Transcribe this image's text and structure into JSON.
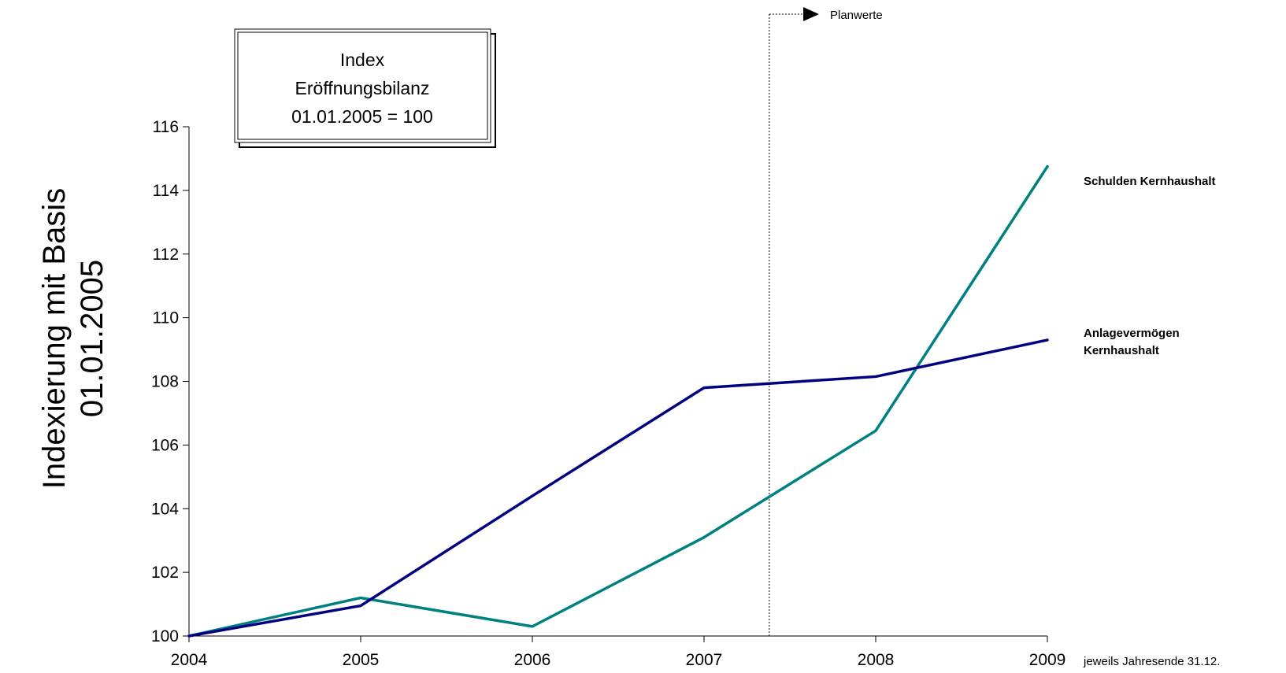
{
  "chart_data": {
    "type": "line",
    "x": [
      "2004",
      "2005",
      "2006",
      "2007",
      "2008",
      "2009"
    ],
    "series": [
      {
        "name": "Schulden Kernhaushalt",
        "color": "#008080",
        "values": [
          100,
          101.2,
          100.3,
          103.1,
          106.45,
          114.75
        ]
      },
      {
        "name": "Anlagevermögen Kernhaushalt",
        "color": "#000080",
        "values": [
          100,
          100.95,
          104.4,
          107.8,
          108.15,
          109.3
        ]
      }
    ],
    "ylabel": "Indexierung mit Basis 01.01.2005",
    "yticks": [
      100,
      102,
      104,
      106,
      108,
      110,
      112,
      114,
      116
    ],
    "ylim": [
      100,
      116
    ],
    "xnote": "jeweils Jahresende 31.12.",
    "index_box": [
      "Index",
      "Eröffnungsbilanz",
      "01.01.2005 = 100"
    ],
    "plan_marker": {
      "label": "Planwerte",
      "after_x": 2007.38
    },
    "grid": false,
    "legend": "labels at line ends"
  }
}
